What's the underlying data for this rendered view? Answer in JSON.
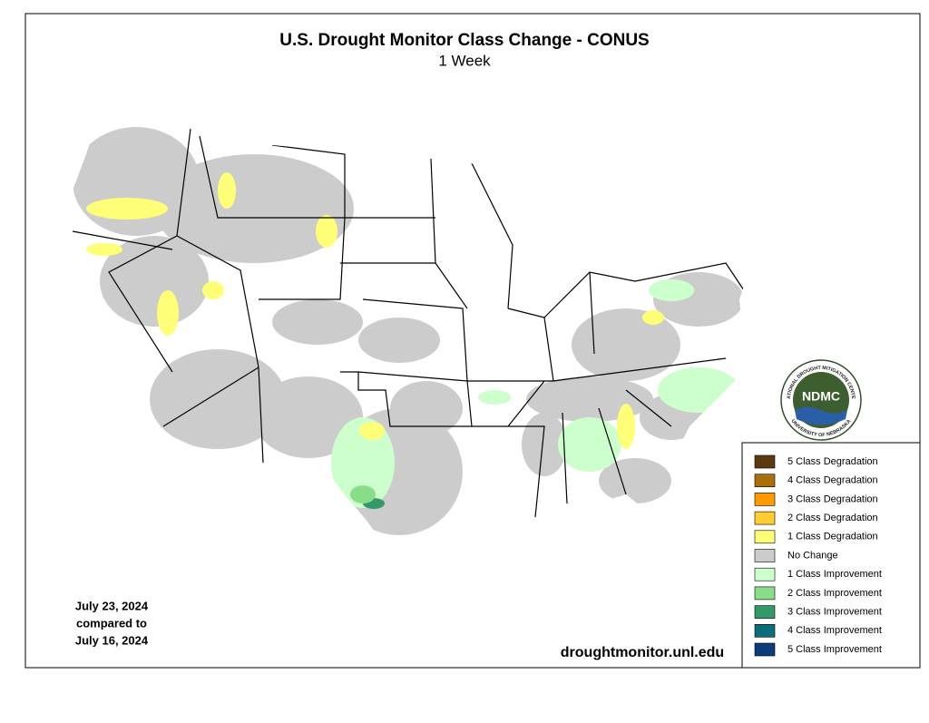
{
  "title": "U.S. Drought Monitor Class Change - CONUS",
  "subtitle": "1 Week",
  "date_note": [
    "July 23, 2024",
    "compared to",
    "July 16, 2024"
  ],
  "source": "droughtmonitor.unl.edu",
  "logo": {
    "text": "NDMC",
    "ring_top": "NATIONAL DROUGHT MITIGATION CENTER",
    "ring_bottom": "UNIVERSITY OF NEBRASKA"
  },
  "legend": [
    {
      "label": "5 Class Degradation",
      "color": "#5c3a0f"
    },
    {
      "label": "4 Class Degradation",
      "color": "#a86f0a"
    },
    {
      "label": "3 Class Degradation",
      "color": "#ff9900"
    },
    {
      "label": "2 Class Degradation",
      "color": "#ffcc33"
    },
    {
      "label": "1 Class Degradation",
      "color": "#ffff77"
    },
    {
      "label": "No Change",
      "color": "#cccccc"
    },
    {
      "label": "1 Class Improvement",
      "color": "#ccffcc"
    },
    {
      "label": "2 Class Improvement",
      "color": "#88dd88"
    },
    {
      "label": "3 Class Improvement",
      "color": "#339966"
    },
    {
      "label": "4 Class Improvement",
      "color": "#0a6e7a"
    },
    {
      "label": "5 Class Improvement",
      "color": "#0a3d7a"
    }
  ]
}
